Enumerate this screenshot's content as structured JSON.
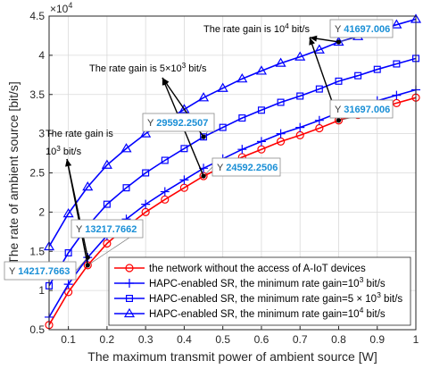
{
  "chart_data": {
    "type": "line",
    "xlabel": "The maximum transmit power of ambient source [W]",
    "ylabel": "The rate of ambient source [bit/s]",
    "y_exponent_label": "×10^4",
    "xlim": [
      0.05,
      1.0
    ],
    "ylim": [
      5000,
      45000
    ],
    "xticks": [
      0.1,
      0.2,
      0.3,
      0.4,
      0.5,
      0.6,
      0.7,
      0.8,
      0.9,
      1
    ],
    "xtick_labels": [
      "0.1",
      "0.2",
      "0.3",
      "0.4",
      "0.5",
      "0.6",
      "0.7",
      "0.8",
      "0.9",
      "1"
    ],
    "yticks": [
      5000,
      10000,
      15000,
      20000,
      25000,
      30000,
      35000,
      40000,
      45000
    ],
    "ytick_labels": [
      "0.5",
      "1",
      "1.5",
      "2",
      "2.5",
      "3",
      "3.5",
      "4",
      "4.5"
    ],
    "grid": true,
    "legend_position": "bottom-right",
    "x": [
      0.05,
      0.1,
      0.15,
      0.2,
      0.25,
      0.3,
      0.35,
      0.4,
      0.45,
      0.5,
      0.55,
      0.6,
      0.65,
      0.7,
      0.75,
      0.8,
      0.85,
      0.9,
      0.95,
      1.0
    ],
    "series": [
      {
        "name": "the network without the access of A-IoT devices",
        "color": "#ff0000",
        "marker": "circle",
        "values": [
          5600,
          9800,
          13218,
          16000,
          18100,
          20000,
          21600,
          23100,
          24592,
          25800,
          27000,
          28000,
          29000,
          29800,
          30700,
          31697,
          32400,
          33200,
          33900,
          34600
        ]
      },
      {
        "name": "HAPC-enabled SR, the minimum rate gain=10^3 bit/s",
        "color": "#0000ff",
        "marker": "plus",
        "values": [
          6600,
          10800,
          14218,
          17000,
          19100,
          21000,
          22600,
          24100,
          25592,
          26800,
          28000,
          29000,
          30000,
          30800,
          31700,
          32697,
          33400,
          34200,
          34900,
          35600
        ]
      },
      {
        "name": "HAPC-enabled SR, the minimum rate gain=5 × 10^3 bit/s",
        "color": "#0000ff",
        "marker": "square",
        "values": [
          10600,
          14800,
          18218,
          21000,
          23100,
          25000,
          26600,
          28100,
          29592,
          30800,
          32000,
          33000,
          34000,
          34800,
          35700,
          36697,
          37400,
          38200,
          38900,
          39600
        ]
      },
      {
        "name": "HAPC-enabled SR, the minimum rate gain=10^4 bit/s",
        "color": "#0000ff",
        "marker": "triangle",
        "values": [
          15600,
          19800,
          23218,
          26000,
          28100,
          30000,
          31600,
          33100,
          34592,
          35800,
          37000,
          38000,
          39000,
          39800,
          40700,
          41697,
          42400,
          43200,
          43900,
          44600
        ]
      }
    ],
    "datatips": [
      {
        "x": 0.15,
        "y": 14217.7663,
        "y_prefix": "Y",
        "value": "14217.7663"
      },
      {
        "x": 0.15,
        "y": 13217.7662,
        "y_prefix": "Y",
        "value": "13217.7662"
      },
      {
        "x": 0.45,
        "y": 29592.2507,
        "y_prefix": "Y",
        "value": "29592.2507"
      },
      {
        "x": 0.45,
        "y": 24592.2506,
        "y_prefix": "Y",
        "value": "24592.2506"
      },
      {
        "x": 0.8,
        "y": 41697.006,
        "y_prefix": "Y",
        "value": "41697.006"
      },
      {
        "x": 0.8,
        "y": 31697.006,
        "y_prefix": "Y",
        "value": "31697.006"
      }
    ],
    "annotations": [
      {
        "lines": [
          "The rate gain is",
          "10^3 bit/s"
        ]
      },
      {
        "text": "The rate gain is 5×10^3 bit/s"
      },
      {
        "text": "The rate gain is 10^4 bit/s"
      }
    ]
  }
}
